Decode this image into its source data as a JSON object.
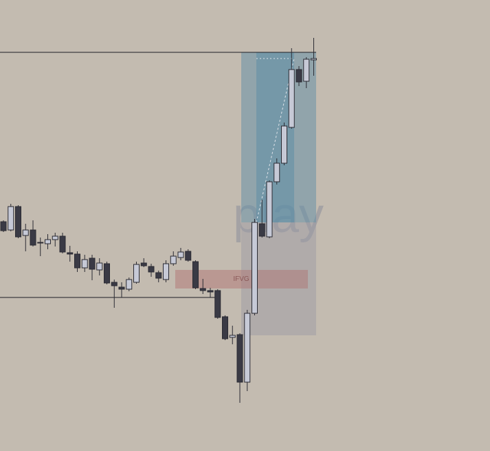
{
  "chart_data": {
    "type": "candlestick",
    "watermark": "play",
    "ylim": [
      0,
      655
    ],
    "bull_color": "#c6c9d6",
    "bear_color": "#3a3a45",
    "wick_color": "#2a2a32",
    "levels": [
      579,
      223
    ],
    "fvg_zone": {
      "label": "IFVG",
      "top": 263,
      "bottom": 236,
      "color": "#b06e6e"
    },
    "position": {
      "entry": 332,
      "target": 579,
      "stop": 168,
      "target_color": "#5f8ea6",
      "stop_color": "#9a9aa4"
    },
    "open": [
      333,
      321,
      355,
      313,
      321,
      303,
      301,
      307,
      312,
      288,
      286,
      266,
      280,
      263,
      272,
      245,
      238,
      235,
      245,
      273,
      268,
      259,
      249,
      272,
      281,
      290,
      275,
      236,
      233,
      233,
      195,
      165,
      169,
      100,
      200,
      330,
      311,
      391,
      418,
      470,
      554,
      537,
      568
    ],
    "high": [
      335,
      359,
      357,
      330,
      335,
      310,
      315,
      317,
      317,
      298,
      290,
      285,
      285,
      280,
      275,
      249,
      245,
      252,
      275,
      280,
      272,
      262,
      277,
      290,
      295,
      293,
      277,
      250,
      237,
      235,
      197,
      182,
      171,
      205,
      337,
      365,
      393,
      425,
      477,
      585,
      559,
      572,
      600
    ],
    "low": [
      318,
      319,
      309,
      290,
      297,
      283,
      293,
      297,
      287,
      275,
      260,
      260,
      248,
      255,
      242,
      208,
      223,
      232,
      243,
      267,
      253,
      245,
      245,
      269,
      277,
      275,
      235,
      228,
      223,
      192,
      161,
      155,
      70,
      87,
      197,
      310,
      309,
      387,
      415,
      468,
      530,
      527,
      545
    ],
    "close": [
      320,
      355,
      311,
      321,
      299,
      302,
      307,
      312,
      289,
      286,
      266,
      278,
      264,
      273,
      244,
      240,
      235,
      249,
      271,
      269,
      260,
      251,
      272,
      283,
      289,
      277,
      237,
      233,
      231,
      194,
      163,
      168,
      100,
      200,
      332,
      312,
      391,
      418,
      472,
      554,
      536,
      569,
      570
    ]
  }
}
